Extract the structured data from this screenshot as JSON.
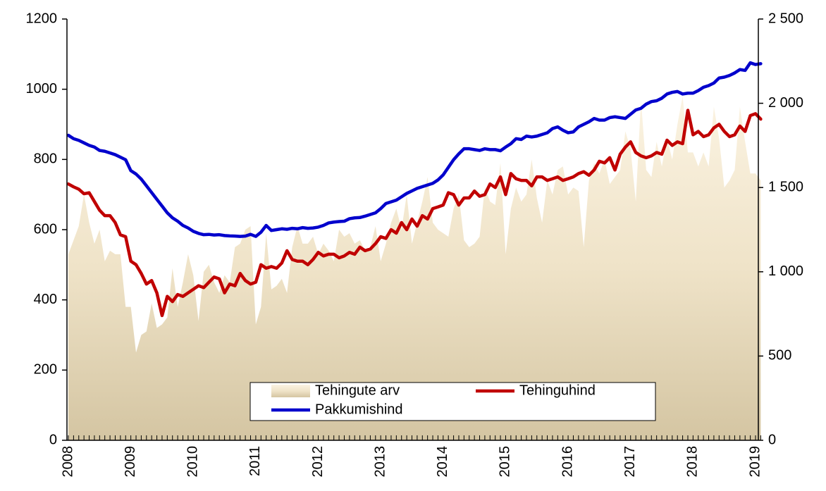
{
  "chart_data": {
    "type": "line",
    "categories": [
      "2008",
      null,
      null,
      null,
      null,
      null,
      null,
      null,
      null,
      null,
      null,
      null,
      "2009",
      null,
      null,
      null,
      null,
      null,
      null,
      null,
      null,
      null,
      null,
      null,
      "2010",
      null,
      null,
      null,
      null,
      null,
      null,
      null,
      null,
      null,
      null,
      null,
      "2011",
      null,
      null,
      null,
      null,
      null,
      null,
      null,
      null,
      null,
      null,
      null,
      "2012",
      null,
      null,
      null,
      null,
      null,
      null,
      null,
      null,
      null,
      null,
      null,
      "2013",
      null,
      null,
      null,
      null,
      null,
      null,
      null,
      null,
      null,
      null,
      null,
      "2014",
      null,
      null,
      null,
      null,
      null,
      null,
      null,
      null,
      null,
      null,
      null,
      "2015",
      null,
      null,
      null,
      null,
      null,
      null,
      null,
      null,
      null,
      null,
      null,
      "2016",
      null,
      null,
      null,
      null,
      null,
      null,
      null,
      null,
      null,
      null,
      null,
      "2017",
      null,
      null,
      null,
      null,
      null,
      null,
      null,
      null,
      null,
      null,
      null,
      "2018",
      null,
      null,
      null,
      null,
      null,
      null,
      null,
      null,
      null,
      null,
      null,
      "2019",
      null
    ],
    "ylim": [
      0,
      1200
    ],
    "yticks": [
      0,
      200,
      400,
      600,
      800,
      1000,
      1200
    ],
    "y2lim": [
      0,
      2500
    ],
    "y2ticks": [
      0,
      500,
      {
        "value": 1000,
        "label": "1 000"
      },
      {
        "value": 1500,
        "label": "1 500"
      },
      {
        "value": 2000,
        "label": "2 000"
      },
      {
        "value": 2500,
        "label": "2 500"
      }
    ],
    "legend": "lower center",
    "series": [
      {
        "name": "Tehingute arv",
        "type": "area",
        "color": "#f3e6c8",
        "values": [
          530,
          570,
          610,
          700,
          620,
          560,
          600,
          510,
          540,
          530,
          530,
          380,
          380,
          250,
          300,
          310,
          390,
          320,
          330,
          350,
          490,
          380,
          450,
          530,
          470,
          340,
          480,
          500,
          450,
          420,
          470,
          450,
          550,
          560,
          600,
          610,
          330,
          380,
          590,
          430,
          440,
          460,
          420,
          550,
          610,
          560,
          560,
          580,
          530,
          560,
          540,
          510,
          600,
          580,
          590,
          560,
          570,
          540,
          550,
          610,
          510,
          560,
          620,
          660,
          600,
          700,
          560,
          620,
          680,
          750,
          620,
          600,
          590,
          580,
          660,
          700,
          570,
          550,
          560,
          580,
          720,
          680,
          670,
          790,
          530,
          660,
          720,
          680,
          700,
          800,
          690,
          620,
          740,
          700,
          770,
          780,
          700,
          720,
          710,
          550,
          740,
          790,
          760,
          800,
          730,
          750,
          770,
          880,
          830,
          680,
          970,
          770,
          750,
          850,
          780,
          860,
          800,
          900,
          980,
          820,
          820,
          780,
          820,
          780,
          950,
          860,
          720,
          740,
          770,
          950,
          850,
          760,
          760,
          740
        ]
      },
      {
        "name": "Tehinguhind",
        "color": "#c00000",
        "axis": "y2",
        "values": [
          1521,
          1504,
          1490,
          1463,
          1469,
          1417,
          1365,
          1333,
          1333,
          1292,
          1219,
          1208,
          1063,
          1042,
          990,
          927,
          948,
          875,
          740,
          854,
          823,
          865,
          854,
          875,
          896,
          917,
          906,
          938,
          969,
          958,
          875,
          927,
          917,
          990,
          948,
          927,
          938,
          1042,
          1021,
          1031,
          1021,
          1052,
          1125,
          1073,
          1063,
          1063,
          1042,
          1073,
          1115,
          1094,
          1104,
          1104,
          1083,
          1094,
          1115,
          1104,
          1146,
          1125,
          1135,
          1167,
          1208,
          1198,
          1250,
          1229,
          1292,
          1250,
          1313,
          1271,
          1333,
          1313,
          1375,
          1385,
          1396,
          1469,
          1458,
          1396,
          1438,
          1438,
          1479,
          1448,
          1458,
          1521,
          1500,
          1563,
          1458,
          1583,
          1552,
          1542,
          1542,
          1510,
          1563,
          1563,
          1542,
          1552,
          1563,
          1542,
          1552,
          1563,
          1583,
          1594,
          1573,
          1604,
          1656,
          1646,
          1677,
          1604,
          1698,
          1740,
          1771,
          1708,
          1688,
          1677,
          1688,
          1708,
          1698,
          1781,
          1750,
          1771,
          1760,
          1958,
          1813,
          1833,
          1802,
          1813,
          1854,
          1875,
          1833,
          1802,
          1813,
          1865,
          1833,
          1927,
          1938,
          1906
        ]
      },
      {
        "name": "Pakkumishind",
        "color": "#0000cc",
        "axis": "y2",
        "values": [
          1810,
          1790,
          1780,
          1765,
          1750,
          1740,
          1720,
          1715,
          1705,
          1695,
          1680,
          1665,
          1600,
          1580,
          1550,
          1510,
          1470,
          1430,
          1390,
          1350,
          1320,
          1300,
          1275,
          1260,
          1240,
          1228,
          1220,
          1222,
          1218,
          1220,
          1215,
          1213,
          1212,
          1210,
          1212,
          1222,
          1210,
          1235,
          1275,
          1245,
          1250,
          1255,
          1252,
          1258,
          1255,
          1262,
          1258,
          1260,
          1265,
          1275,
          1290,
          1295,
          1298,
          1300,
          1315,
          1320,
          1322,
          1330,
          1340,
          1350,
          1375,
          1405,
          1415,
          1425,
          1445,
          1465,
          1480,
          1495,
          1505,
          1515,
          1525,
          1545,
          1575,
          1620,
          1665,
          1700,
          1730,
          1730,
          1725,
          1720,
          1730,
          1725,
          1725,
          1718,
          1740,
          1760,
          1790,
          1785,
          1805,
          1800,
          1805,
          1815,
          1825,
          1850,
          1860,
          1840,
          1825,
          1830,
          1860,
          1875,
          1890,
          1910,
          1900,
          1900,
          1915,
          1920,
          1915,
          1910,
          1935,
          1960,
          1970,
          1995,
          2010,
          2015,
          2030,
          2055,
          2065,
          2070,
          2055,
          2060,
          2060,
          2075,
          2095,
          2105,
          2120,
          2150,
          2155,
          2165,
          2180,
          2200,
          2195,
          2240,
          2230,
          2235
        ]
      }
    ]
  }
}
